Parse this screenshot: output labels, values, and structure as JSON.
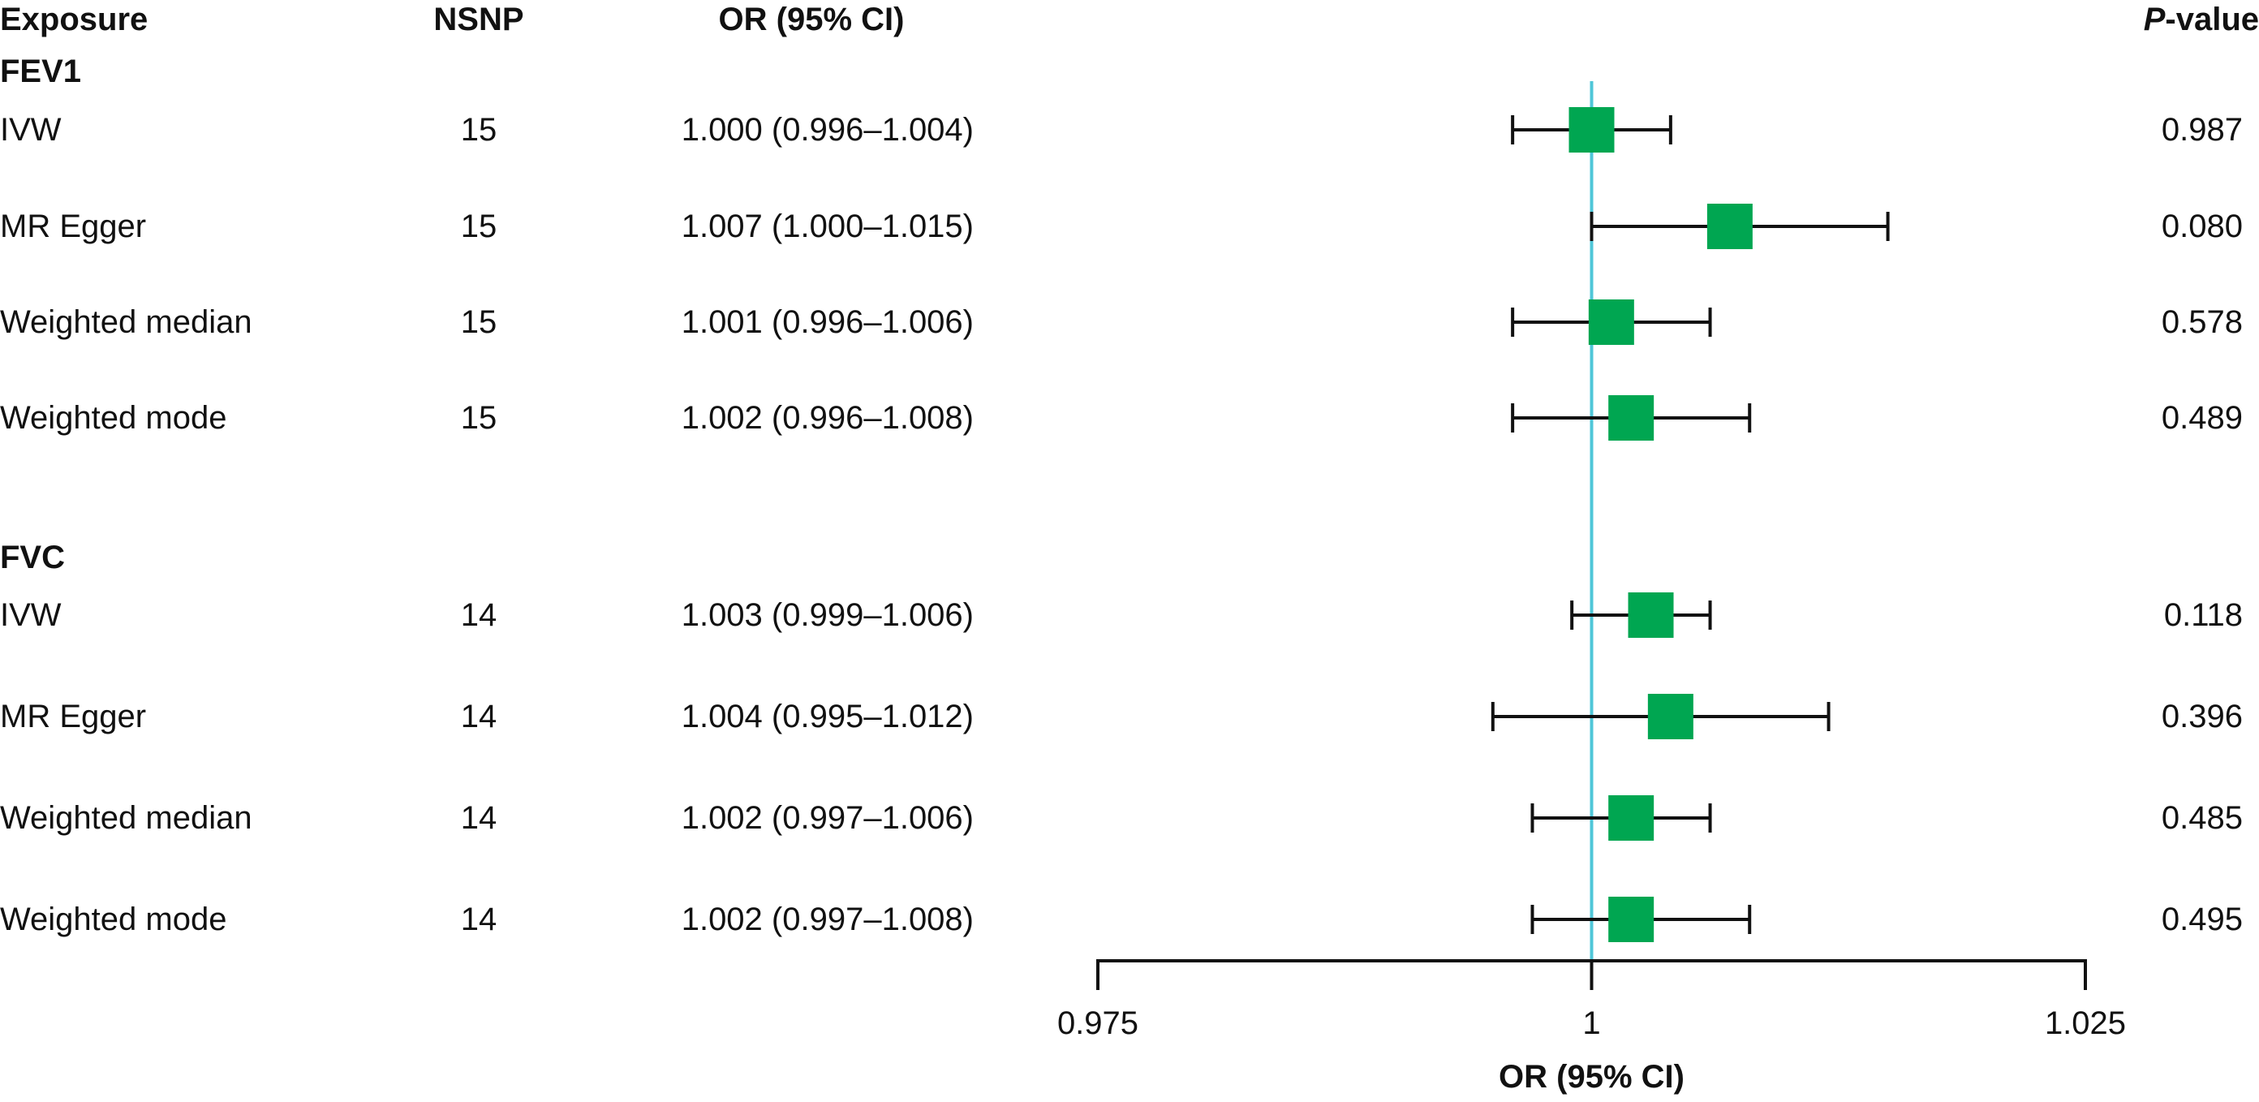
{
  "headers": {
    "exposure": "Exposure",
    "nsnp": "NSNP",
    "or": "OR (95% CI)",
    "p_prefix": "P",
    "p_suffix": "-value"
  },
  "chart_data": {
    "type": "forest",
    "xlabel": "OR (95% CI)",
    "xlim": [
      0.975,
      1.025
    ],
    "xticks": [
      0.975,
      1,
      1.025
    ],
    "xtick_labels": [
      "0.975",
      "1",
      "1.025"
    ],
    "reference_line": 1,
    "colors": {
      "marker": "#00A651",
      "reference": "#4FC6D8",
      "whisker": "#111111"
    },
    "groups": [
      {
        "name": "FEV1",
        "rows": [
          {
            "method": "IVW",
            "nsnp": "15",
            "or_text": "1.000 (0.996–1.004)",
            "or": 1.0,
            "lower": 0.996,
            "upper": 1.004,
            "p": "0.987"
          },
          {
            "method": "MR Egger",
            "nsnp": "15",
            "or_text": "1.007 (1.000–1.015)",
            "or": 1.007,
            "lower": 1.0,
            "upper": 1.015,
            "p": "0.080"
          },
          {
            "method": "Weighted median",
            "nsnp": "15",
            "or_text": "1.001 (0.996–1.006)",
            "or": 1.001,
            "lower": 0.996,
            "upper": 1.006,
            "p": "0.578"
          },
          {
            "method": "Weighted mode",
            "nsnp": "15",
            "or_text": "1.002 (0.996–1.008)",
            "or": 1.002,
            "lower": 0.996,
            "upper": 1.008,
            "p": "0.489"
          }
        ]
      },
      {
        "name": "FVC",
        "rows": [
          {
            "method": "IVW",
            "nsnp": "14",
            "or_text": "1.003 (0.999–1.006)",
            "or": 1.003,
            "lower": 0.999,
            "upper": 1.006,
            "p": "0.118"
          },
          {
            "method": "MR Egger",
            "nsnp": "14",
            "or_text": "1.004 (0.995–1.012)",
            "or": 1.004,
            "lower": 0.995,
            "upper": 1.012,
            "p": "0.396"
          },
          {
            "method": "Weighted median",
            "nsnp": "14",
            "or_text": "1.002 (0.997–1.006)",
            "or": 1.002,
            "lower": 0.997,
            "upper": 1.006,
            "p": "0.485"
          },
          {
            "method": "Weighted mode",
            "nsnp": "14",
            "or_text": "1.002 (0.997–1.008)",
            "or": 1.002,
            "lower": 0.997,
            "upper": 1.008,
            "p": "0.495"
          }
        ]
      }
    ]
  }
}
